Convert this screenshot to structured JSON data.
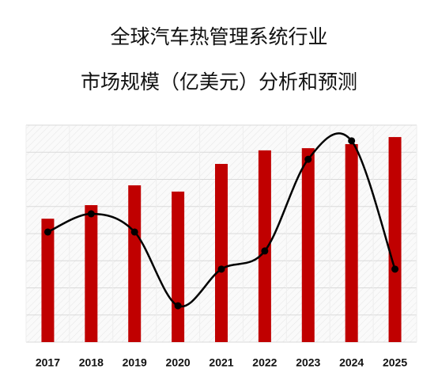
{
  "chart_data": {
    "type": "bar-line",
    "title": [
      "全球汽车热管理系统行业",
      "市场规模（亿美元）分析和预测"
    ],
    "categories": [
      "2017",
      "2018",
      "2019",
      "2020",
      "2021",
      "2022",
      "2023",
      "2024",
      "2025"
    ],
    "series": [
      {
        "type": "bar",
        "color": "#c00000",
        "values": [
          4.55,
          5.05,
          5.78,
          5.55,
          6.57,
          7.07,
          7.15,
          7.3,
          7.56
        ]
      },
      {
        "type": "line",
        "color": "#000000",
        "values": [
          4.06,
          4.73,
          4.06,
          1.34,
          2.69,
          3.36,
          6.74,
          7.42,
          2.69
        ]
      }
    ],
    "ylim": [
      0,
      8
    ],
    "yticks": [
      0,
      1,
      2,
      3,
      4,
      5,
      6,
      7,
      8
    ],
    "grid": true
  }
}
